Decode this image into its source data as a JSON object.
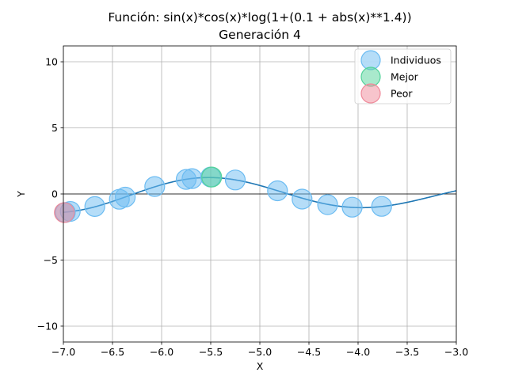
{
  "chart_data": {
    "type": "scatter",
    "title": "Función: sin(x)*cos(x)*log(1+(0.1 + abs(x)**1.4))",
    "subtitle": "Generación 4",
    "xlabel": "X",
    "ylabel": "Y",
    "xlim": [
      -7.0,
      -3.0
    ],
    "ylim": [
      -11.2,
      11.2
    ],
    "xticks": [
      -7.0,
      -6.5,
      -6.0,
      -5.5,
      -5.0,
      -4.5,
      -4.0,
      -3.5,
      -3.0
    ],
    "xtick_labels": [
      "−7.0",
      "−6.5",
      "−6.0",
      "−5.5",
      "−5.0",
      "−4.5",
      "−4.0",
      "−3.5",
      "−3.0"
    ],
    "yticks": [
      -10,
      -5,
      0,
      5,
      10
    ],
    "ytick_labels": [
      "−10",
      "−5",
      "0",
      "5",
      "10"
    ],
    "grid": true,
    "legend_position": "top-right",
    "curve": {
      "name": "sin(x)*cos(x)*log(1+(0.1 + abs(x)**1.4))",
      "color": "#1f77b4",
      "x_start": -7.0,
      "x_end": -3.0
    },
    "series": [
      {
        "name": "Individuos",
        "color": "#6cbcf2",
        "points": [
          {
            "x": -6.98,
            "y": -1.4
          },
          {
            "x": -6.93,
            "y": -1.32
          },
          {
            "x": -6.68,
            "y": -0.95
          },
          {
            "x": -6.43,
            "y": -0.4
          },
          {
            "x": -6.37,
            "y": -0.24
          },
          {
            "x": -6.07,
            "y": 0.56
          },
          {
            "x": -5.75,
            "y": 1.1
          },
          {
            "x": -5.69,
            "y": 1.16
          },
          {
            "x": -5.5,
            "y": 1.28
          },
          {
            "x": -5.25,
            "y": 1.06
          },
          {
            "x": -4.82,
            "y": 0.24
          },
          {
            "x": -4.57,
            "y": -0.39
          },
          {
            "x": -4.31,
            "y": -0.81
          },
          {
            "x": -4.06,
            "y": -1.0
          },
          {
            "x": -3.76,
            "y": -0.94
          }
        ]
      },
      {
        "name": "Mejor",
        "color": "#53d39a",
        "points": [
          {
            "x": -5.49,
            "y": 1.28
          }
        ]
      },
      {
        "name": "Peor",
        "color": "#ef8a9a",
        "points": [
          {
            "x": -6.99,
            "y": -1.41
          }
        ]
      }
    ]
  }
}
